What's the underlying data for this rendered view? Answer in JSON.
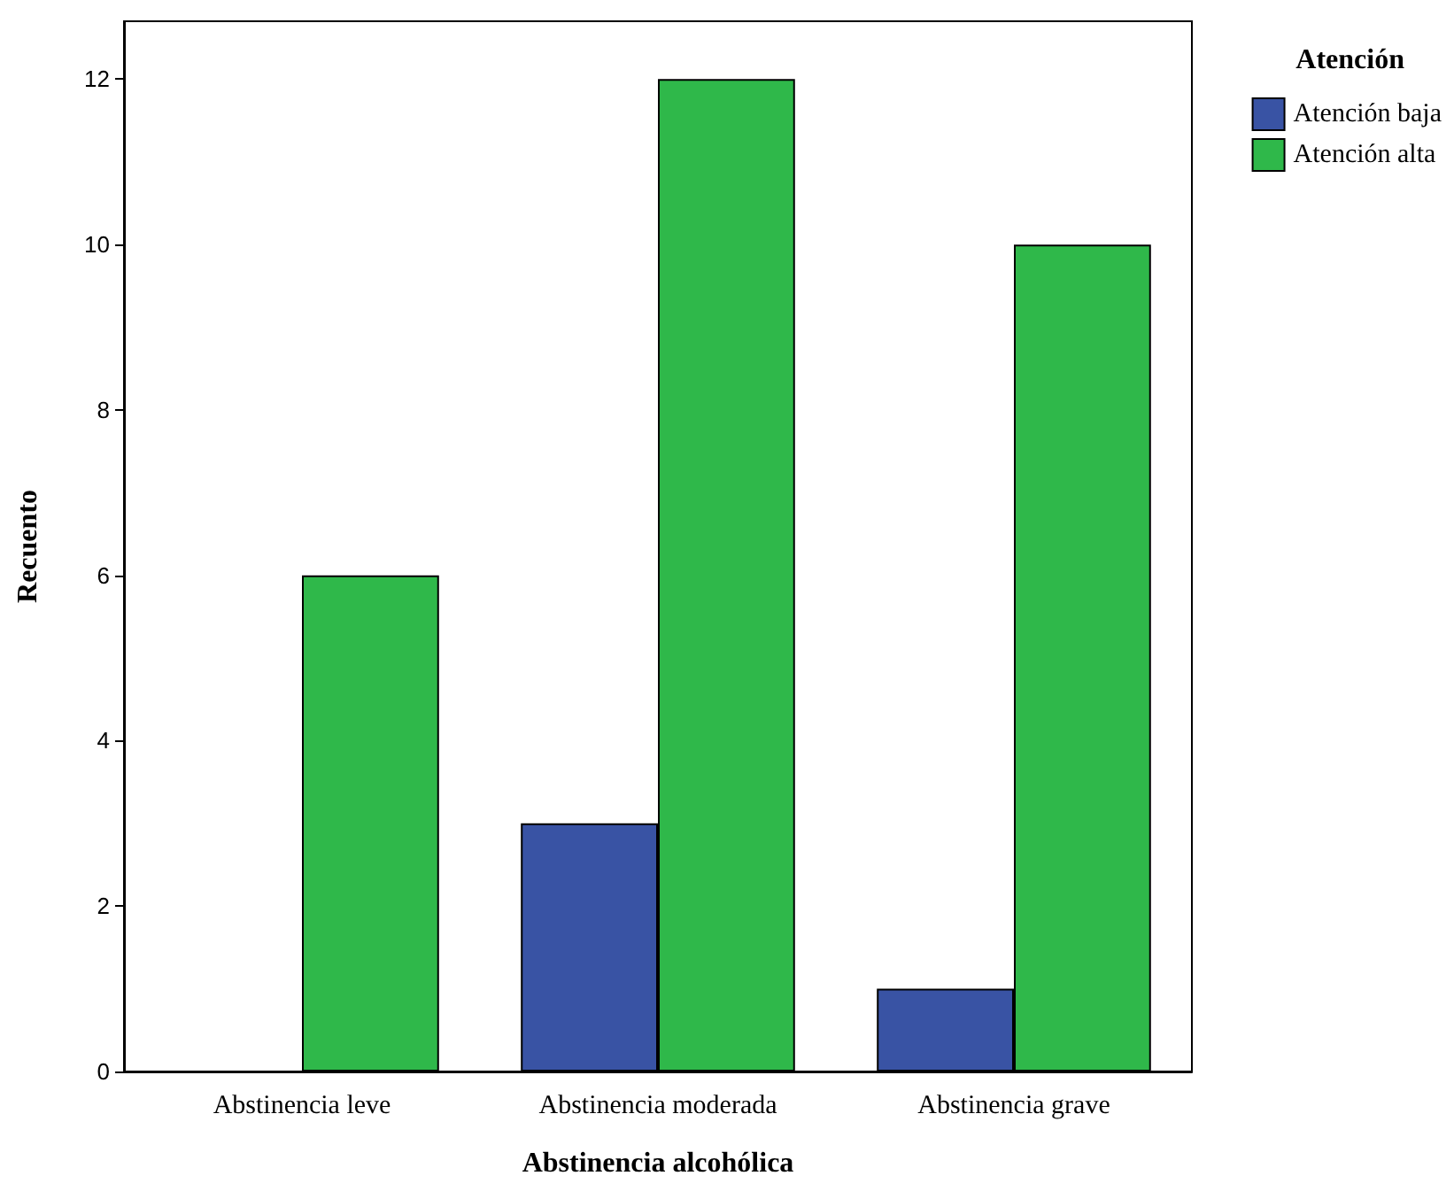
{
  "chart_data": {
    "type": "bar",
    "xlabel": "Abstinencia alcohólica",
    "ylabel": "Recuento",
    "legend_title": "Atención",
    "categories": [
      "Abstinencia leve",
      "Abstinencia moderada",
      "Abstinencia grave"
    ],
    "series": [
      {
        "name": "Atención baja",
        "color": "#3953a4",
        "values": [
          null,
          3,
          1
        ]
      },
      {
        "name": "Atención alta",
        "color": "#2fb84a",
        "values": [
          6,
          12,
          10
        ]
      }
    ],
    "ylim": [
      0,
      12.7
    ],
    "yticks": [
      0,
      2,
      4,
      6,
      8,
      10,
      12
    ],
    "grid": false,
    "legend": "top right"
  }
}
